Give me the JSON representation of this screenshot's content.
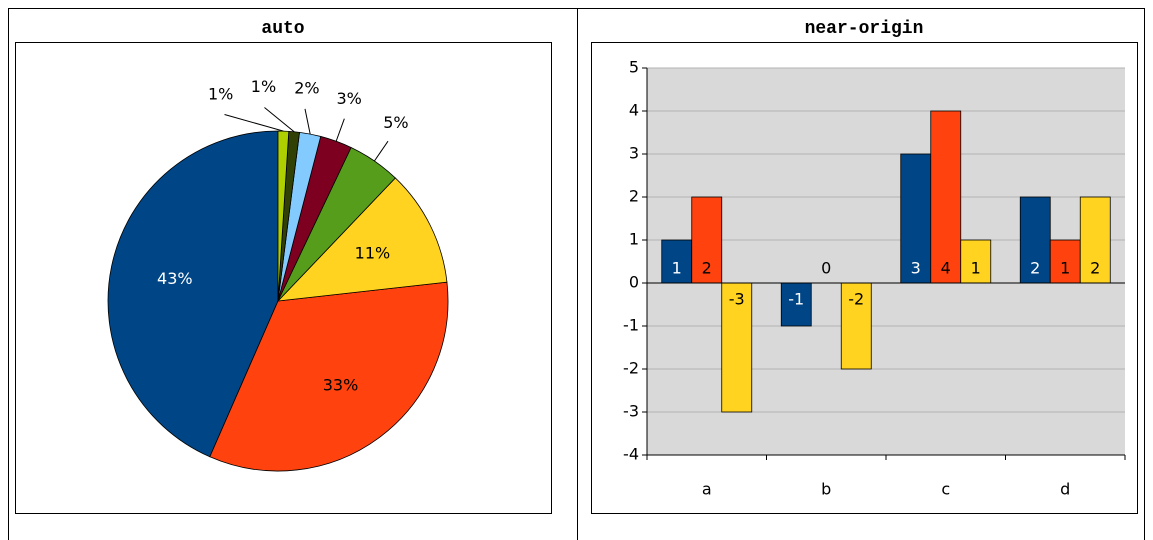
{
  "chart_data": [
    {
      "type": "pie",
      "title": "auto",
      "values": [
        43,
        33,
        11,
        5,
        3,
        2,
        1,
        1
      ],
      "value_labels": [
        "43%",
        "33%",
        "11%",
        "5%",
        "3%",
        "2%",
        "1%",
        "1%"
      ],
      "colors": [
        "#004586",
        "#ff420e",
        "#ffd320",
        "#579d1c",
        "#7e0021",
        "#83caff",
        "#314004",
        "#aecf00"
      ]
    },
    {
      "type": "bar",
      "title": "near-origin",
      "categories": [
        "a",
        "b",
        "c",
        "d"
      ],
      "series": [
        {
          "color": "#004586",
          "values": [
            1,
            -1,
            3,
            2
          ]
        },
        {
          "color": "#ff420e",
          "values": [
            2,
            0,
            4,
            1
          ]
        },
        {
          "color": "#ffd320",
          "values": [
            -3,
            -2,
            1,
            2
          ]
        }
      ],
      "ylim": [
        -4,
        5
      ],
      "yticks": [
        -4,
        -3,
        -2,
        -1,
        0,
        1,
        2,
        3,
        4,
        5
      ],
      "grid": true
    }
  ]
}
